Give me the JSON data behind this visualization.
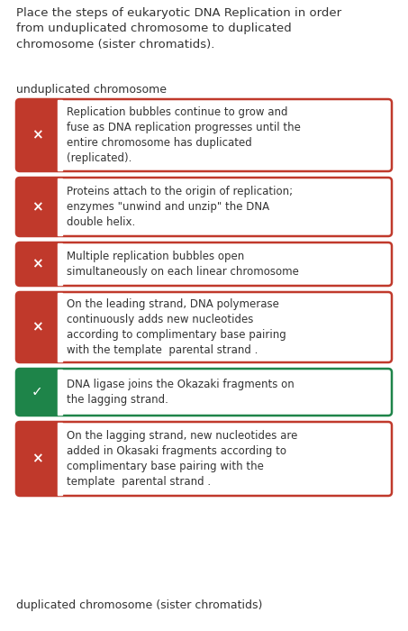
{
  "title": "Place the steps of eukaryotic DNA Replication in order\nfrom unduplicated chromosome to duplicated\nchromosome (sister chromatids).",
  "top_label": "unduplicated chromosome",
  "bottom_label": "duplicated chromosome (sister chromatids)",
  "background_color": "#ffffff",
  "items": [
    {
      "text": "Replication bubbles continue to grow and\nfuse as DNA replication progresses until the\nentire chromosome has duplicated\n(replicated).",
      "correct": false,
      "icon": "×"
    },
    {
      "text": "Proteins attach to the origin of replication;\nenzymes \"unwind and unzip\" the DNA\ndouble helix.",
      "correct": false,
      "icon": "×"
    },
    {
      "text": "Multiple replication bubbles open\nsimultaneously on each linear chromosome",
      "correct": false,
      "icon": "×"
    },
    {
      "text": "On the leading strand, DNA polymerase\ncontinuously adds new nucleotides\naccording to complimentary base pairing\nwith the template  parental strand .",
      "correct": false,
      "icon": "×"
    },
    {
      "text": "DNA ligase joins the Okazaki fragments on\nthe lagging strand.",
      "correct": true,
      "icon": "✓"
    },
    {
      "text": "On the lagging strand, new nucleotides are\nadded in Okasaki fragments according to\ncomplimentary base pairing with the\ntemplate  parental strand .",
      "correct": false,
      "icon": "×"
    }
  ],
  "wrong_color": "#c0392b",
  "correct_color": "#1e8449",
  "border_wrong": "#c0392b",
  "border_correct": "#1e8449",
  "text_color": "#333333",
  "icon_color": "#ffffff",
  "title_fontsize": 9.5,
  "label_fontsize": 9.0,
  "item_fontsize": 8.5
}
